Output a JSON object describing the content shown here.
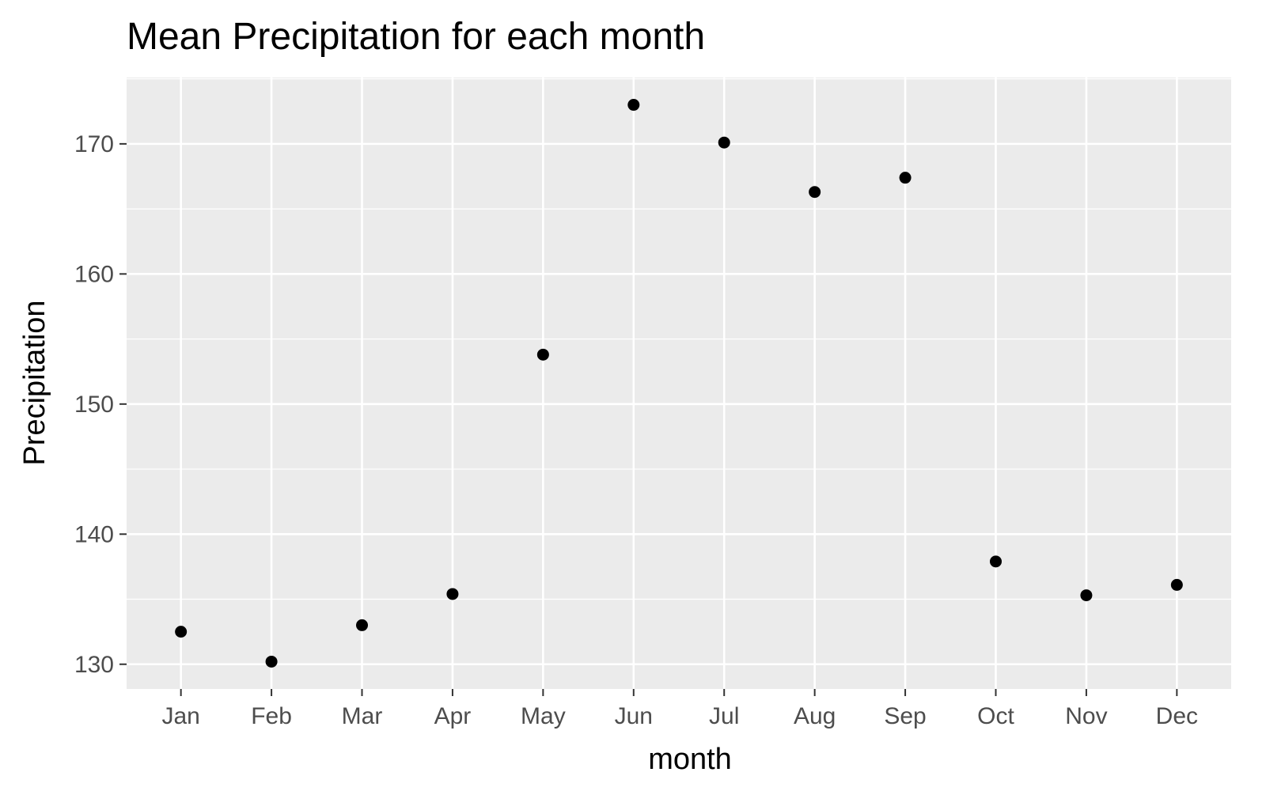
{
  "chart_data": {
    "type": "scatter",
    "title": "Mean Precipitation for each month",
    "xlabel": "month",
    "ylabel": "Precipitation",
    "categories": [
      "Jan",
      "Feb",
      "Mar",
      "Apr",
      "May",
      "Jun",
      "Jul",
      "Aug",
      "Sep",
      "Oct",
      "Nov",
      "Dec"
    ],
    "values": [
      132.5,
      130.2,
      133.0,
      135.4,
      153.8,
      173.0,
      170.1,
      166.3,
      167.4,
      137.9,
      135.3,
      136.1
    ],
    "ylim": [
      128.1,
      175.1
    ],
    "yticks": [
      130,
      140,
      150,
      160,
      170
    ],
    "grid": true,
    "legend": "none",
    "colors": {
      "panel": "#ebebeb",
      "grid": "#ffffff",
      "point": "#000000",
      "tick_text": "#4d4d4d"
    }
  }
}
